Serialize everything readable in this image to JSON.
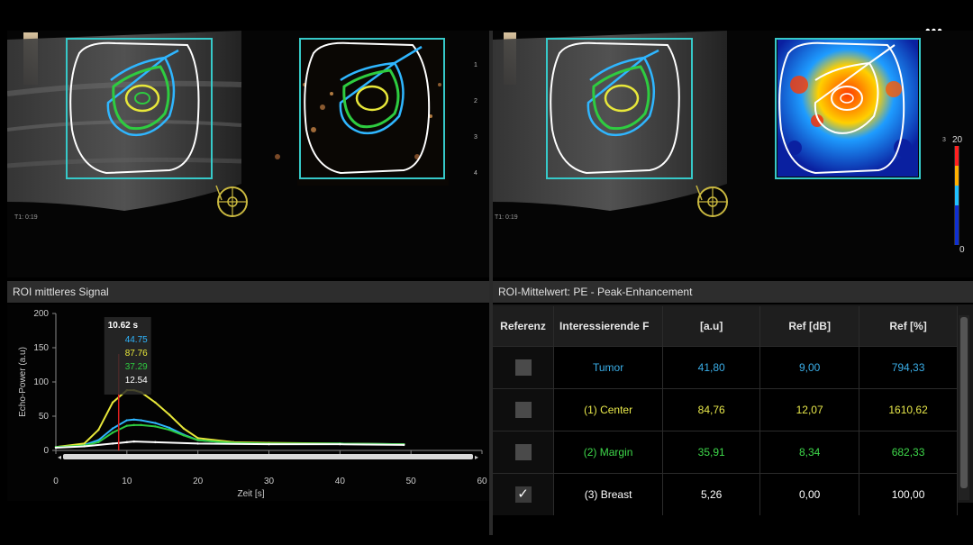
{
  "menu": {
    "more_icon": "more-horizontal-icon",
    "more_label": "•••"
  },
  "ultrasound": {
    "left_timestamp": "T1: 0:19",
    "right_timestamp": "T1: 0:19",
    "colors": {
      "roi_box": "#36c9c9",
      "roi_outline": "#ffffff",
      "tumor": "#2fb6ff",
      "center": "#e8e83a",
      "margin": "#2ecc40",
      "marker": "#c9b840"
    }
  },
  "colorbar": {
    "max_label": "20",
    "min_label": "0",
    "small_label": "3"
  },
  "chart": {
    "header": "ROI mittleres Signal",
    "tooltip": {
      "time": "10.62 s",
      "values": [
        "44.75",
        "87.76",
        "37.29",
        "12.54"
      ]
    }
  },
  "chart_data": {
    "type": "line",
    "xlabel": "Zeit [s]",
    "ylabel": "Echo-Power (a.u)",
    "xlim": [
      0,
      60
    ],
    "ylim": [
      0,
      200
    ],
    "x_ticks": [
      0,
      10,
      20,
      30,
      40,
      50,
      60
    ],
    "y_ticks": [
      0,
      50,
      100,
      150,
      200
    ],
    "cursor_x": 10.62,
    "series": [
      {
        "color": "#2fb6ff",
        "x": [
          0,
          4,
          6,
          8,
          10,
          11,
          12,
          14,
          16,
          18,
          20,
          25,
          30,
          40,
          49
        ],
        "values": [
          5,
          8,
          15,
          32,
          44,
          45,
          44,
          40,
          33,
          23,
          15,
          11,
          10,
          10,
          9
        ]
      },
      {
        "color": "#e8e83a",
        "x": [
          0,
          4,
          6,
          8,
          10,
          11,
          12,
          14,
          16,
          18,
          20,
          25,
          30,
          40,
          49
        ],
        "values": [
          5,
          10,
          30,
          70,
          88,
          88,
          85,
          70,
          52,
          32,
          18,
          12,
          11,
          10,
          9
        ]
      },
      {
        "color": "#2ecc40",
        "x": [
          0,
          4,
          6,
          8,
          10,
          11,
          12,
          14,
          16,
          18,
          20,
          25,
          30,
          40,
          49
        ],
        "values": [
          5,
          7,
          12,
          26,
          36,
          37,
          37,
          35,
          30,
          22,
          15,
          11,
          10,
          10,
          9
        ]
      },
      {
        "color": "#ffffff",
        "x": [
          0,
          4,
          8,
          10,
          11,
          14,
          20,
          30,
          40,
          49
        ],
        "values": [
          4,
          6,
          10,
          12,
          13,
          12,
          10,
          9,
          9,
          8
        ]
      }
    ]
  },
  "table": {
    "header": "ROI-Mittelwert: PE - Peak-Enhancement",
    "columns": [
      "Referenz",
      "Interessierende F",
      "[a.u]",
      "Ref [dB]",
      "Ref [%]"
    ],
    "rows": [
      {
        "name": "Tumor",
        "au": "41,80",
        "db": "9,00",
        "pct": "794,33",
        "color": "#3aaee8",
        "checked": false,
        "check_label": ""
      },
      {
        "name": "(1) Center",
        "au": "84,76",
        "db": "12,07",
        "pct": "1610,62",
        "color": "#e8e84a",
        "checked": false,
        "check_label": ""
      },
      {
        "name": "(2) Margin",
        "au": "35,91",
        "db": "8,34",
        "pct": "682,33",
        "color": "#3ed84a",
        "checked": false,
        "check_label": ""
      },
      {
        "name": "(3) Breast",
        "au": "5,26",
        "db": "0,00",
        "pct": "100,00",
        "color": "#ffffff",
        "checked": true,
        "check_label": "✓"
      }
    ]
  }
}
